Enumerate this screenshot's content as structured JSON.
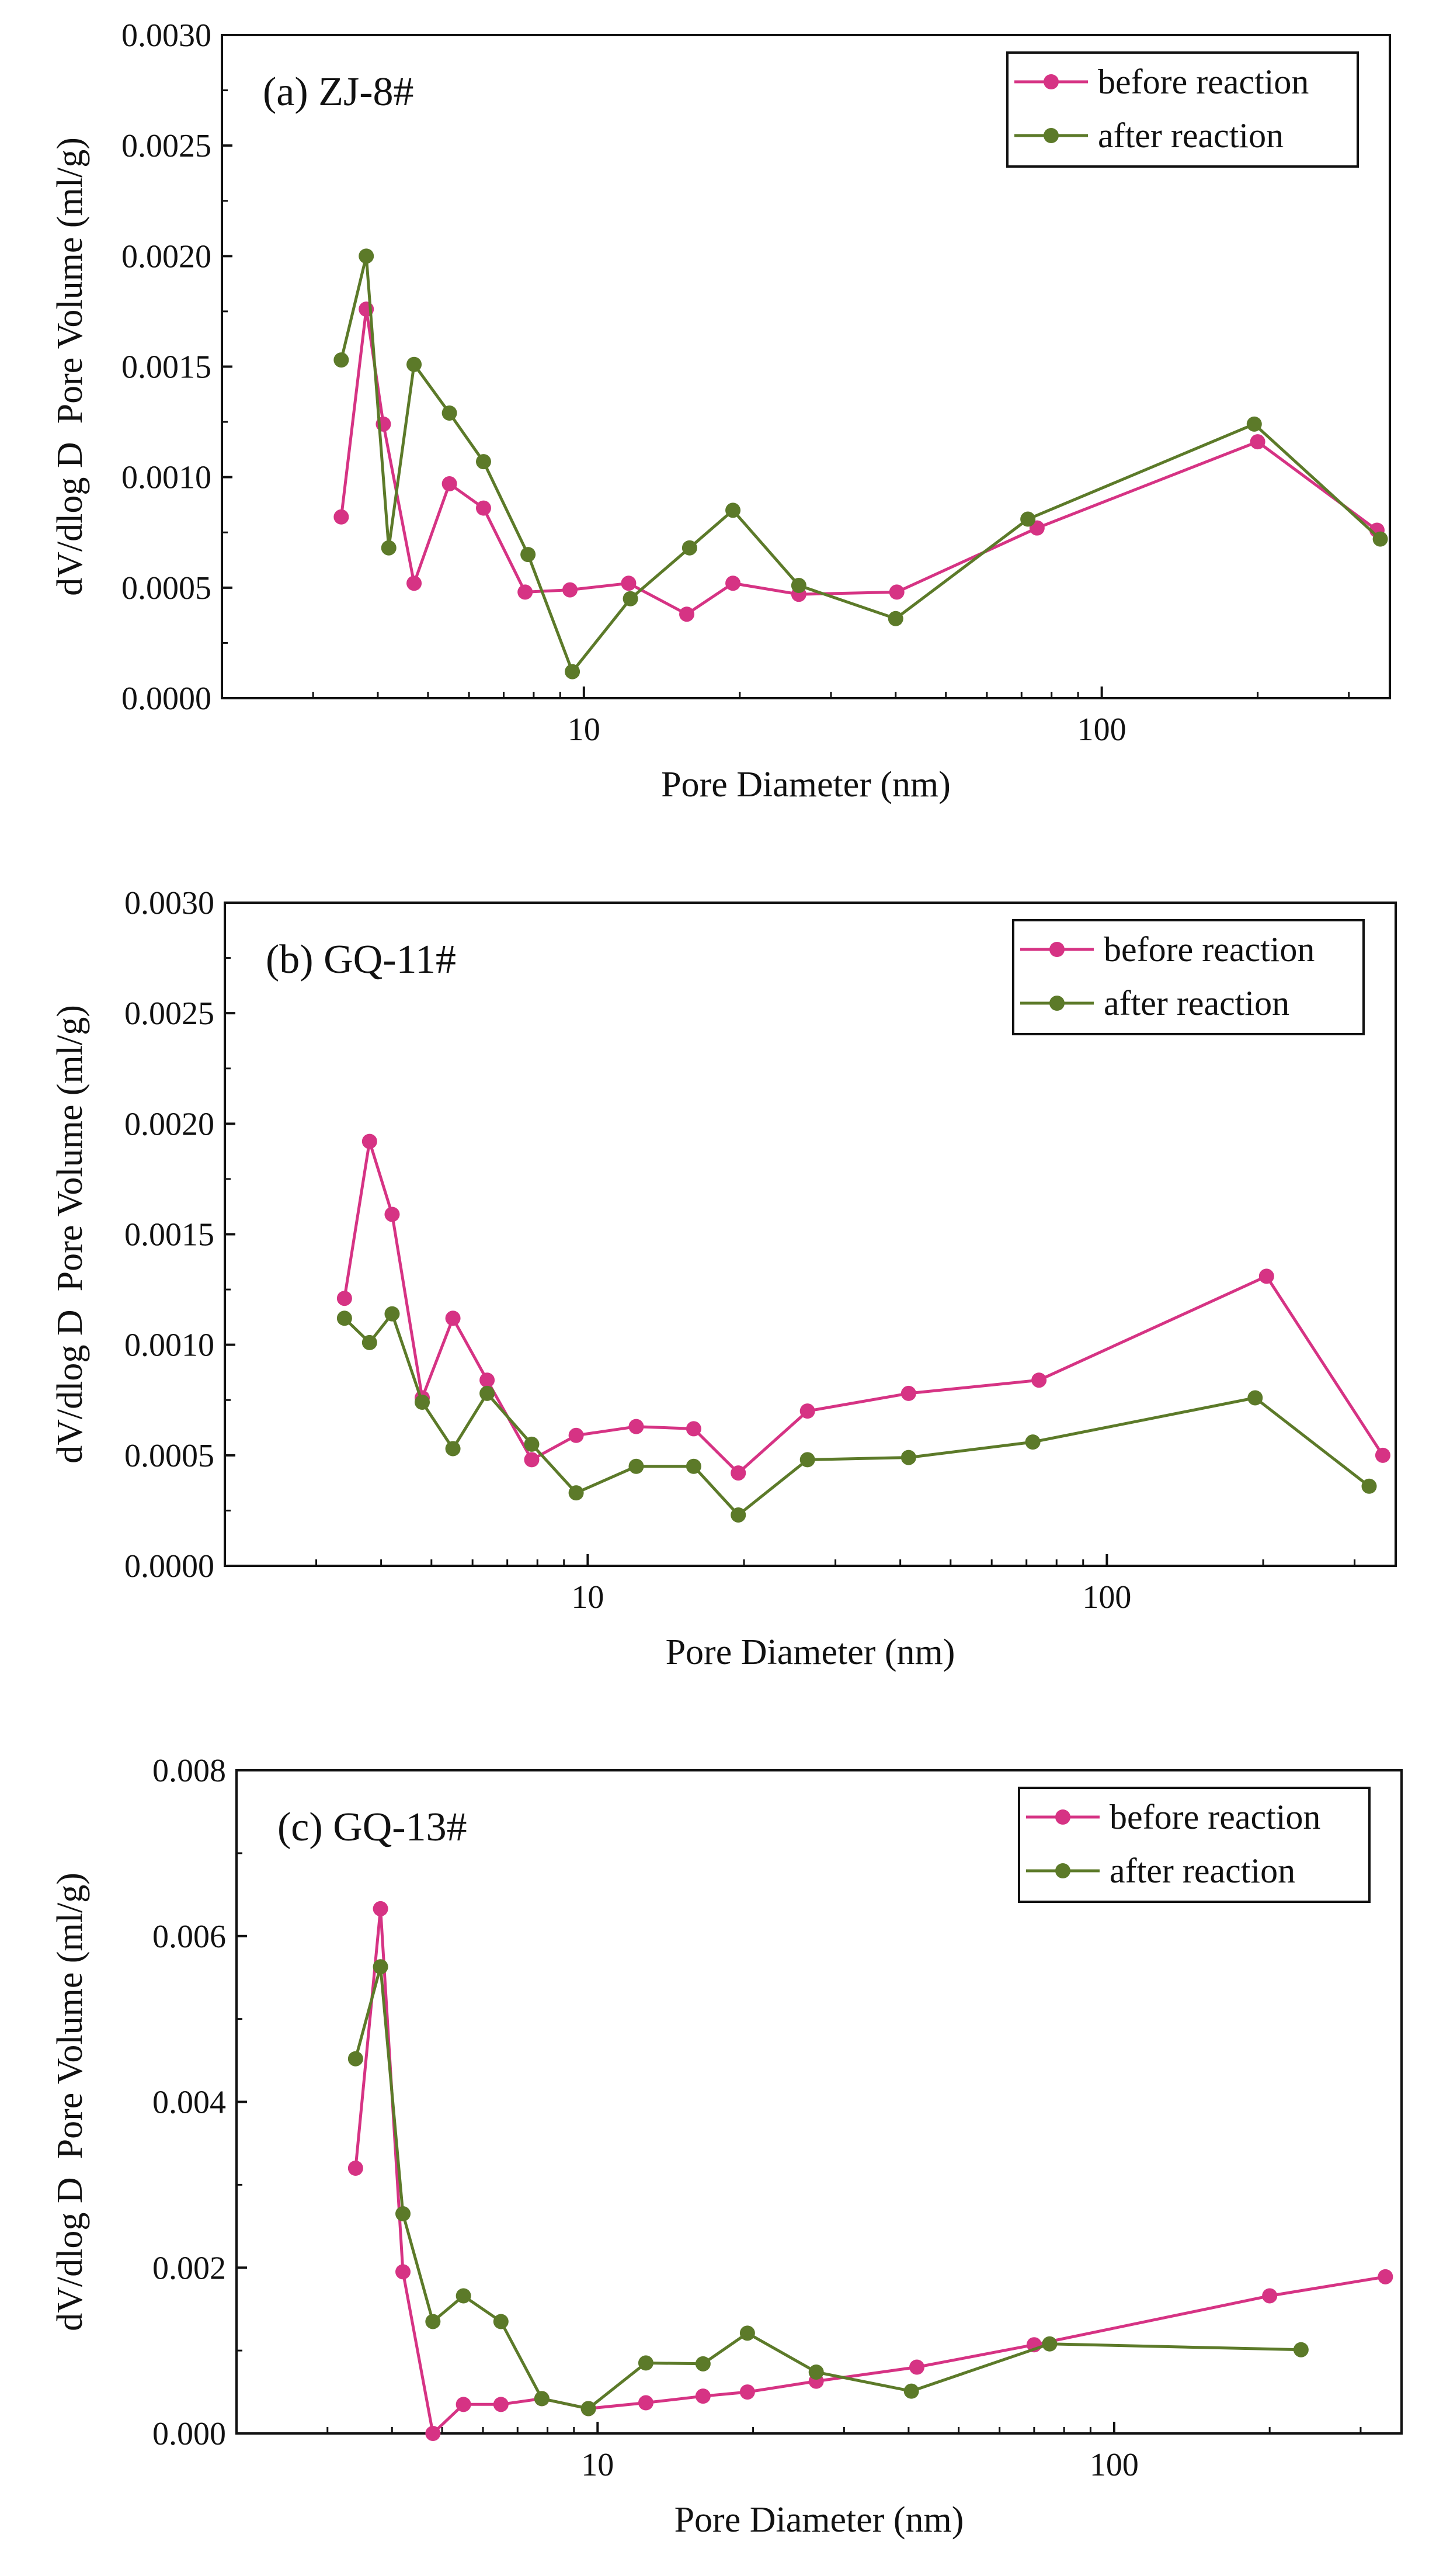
{
  "figure": {
    "colors": {
      "before": "#D63384",
      "after": "#5C7A29",
      "axis": "#111111"
    }
  },
  "chart_data": [
    {
      "type": "line",
      "panel_label": "(a) ZJ-8#",
      "xscale": "log",
      "xlabel": "Pore Diameter (nm)",
      "ylabel": "dV/dlog D  Pore Volume (ml/g)",
      "xlim": [
        2,
        360
      ],
      "ylim": [
        0,
        0.003
      ],
      "xticks": [
        {
          "value": 10,
          "label": "10"
        },
        {
          "value": 100,
          "label": "100"
        }
      ],
      "yticks": [
        {
          "value": 0,
          "label": "0.0000"
        },
        {
          "value": 0.0005,
          "label": "0.0005"
        },
        {
          "value": 0.001,
          "label": "0.0010"
        },
        {
          "value": 0.0015,
          "label": "0.0015"
        },
        {
          "value": 0.002,
          "label": "0.0020"
        },
        {
          "value": 0.0025,
          "label": "0.0025"
        },
        {
          "value": 0.003,
          "label": "0.0030"
        }
      ],
      "legend_position": "top-right",
      "series": [
        {
          "name": "before reaction",
          "key": "before",
          "x": [
            3.4,
            3.8,
            4.1,
            4.7,
            5.5,
            6.4,
            7.7,
            9.4,
            12.2,
            15.8,
            19.4,
            26,
            40.2,
            75,
            200,
            340
          ],
          "y": [
            0.00082,
            0.00176,
            0.00124,
            0.00052,
            0.00097,
            0.00086,
            0.00048,
            0.00049,
            0.00052,
            0.00038,
            0.00052,
            0.00047,
            0.00048,
            0.00077,
            0.00116,
            0.00076
          ]
        },
        {
          "name": "after reaction",
          "key": "after",
          "x": [
            3.4,
            3.8,
            4.2,
            4.7,
            5.5,
            6.4,
            7.8,
            9.5,
            12.3,
            16,
            19.4,
            26,
            40,
            72,
            197,
            345
          ],
          "y": [
            0.00153,
            0.002,
            0.00068,
            0.00151,
            0.00129,
            0.00107,
            0.00065,
            0.00012,
            0.00045,
            0.00068,
            0.00085,
            0.00051,
            0.00036,
            0.00081,
            0.00124,
            0.00072
          ]
        }
      ]
    },
    {
      "type": "line",
      "panel_label": "(b) GQ-11#",
      "xscale": "log",
      "xlabel": "Pore Diameter (nm)",
      "ylabel": "dV/dlog D  Pore Volume (ml/g)",
      "xlim": [
        2,
        360
      ],
      "ylim": [
        0,
        0.003
      ],
      "xticks": [
        {
          "value": 10,
          "label": "10"
        },
        {
          "value": 100,
          "label": "100"
        }
      ],
      "yticks": [
        {
          "value": 0,
          "label": "0.0000"
        },
        {
          "value": 0.0005,
          "label": "0.0005"
        },
        {
          "value": 0.001,
          "label": "0.0010"
        },
        {
          "value": 0.0015,
          "label": "0.0015"
        },
        {
          "value": 0.002,
          "label": "0.0020"
        },
        {
          "value": 0.0025,
          "label": "0.0025"
        },
        {
          "value": 0.003,
          "label": "0.0030"
        }
      ],
      "legend_position": "top-right",
      "series": [
        {
          "name": "before reaction",
          "key": "before",
          "x": [
            3.4,
            3.8,
            4.2,
            4.8,
            5.5,
            6.4,
            7.8,
            9.5,
            12.4,
            16,
            19.5,
            26.5,
            41.5,
            74,
            203,
            340
          ],
          "y": [
            0.00121,
            0.00192,
            0.00159,
            0.00076,
            0.00112,
            0.00084,
            0.00048,
            0.00059,
            0.00063,
            0.00062,
            0.00042,
            0.0007,
            0.00078,
            0.00084,
            0.00131,
            0.0005
          ]
        },
        {
          "name": "after reaction",
          "key": "after",
          "x": [
            3.4,
            3.8,
            4.2,
            4.8,
            5.5,
            6.4,
            7.8,
            9.5,
            12.4,
            16,
            19.5,
            26.5,
            41.5,
            72,
            193,
            320
          ],
          "y": [
            0.00112,
            0.00101,
            0.00114,
            0.00074,
            0.00053,
            0.00078,
            0.00055,
            0.00033,
            0.00045,
            0.00045,
            0.00023,
            0.00048,
            0.00049,
            0.00056,
            0.00076,
            0.00036
          ]
        }
      ]
    },
    {
      "type": "line",
      "panel_label": "(c) GQ-13#",
      "xscale": "log",
      "xlabel": "Pore Diameter (nm)",
      "ylabel": "dV/dlog D  Pore Volume (ml/g)",
      "xlim": [
        2,
        360
      ],
      "ylim": [
        0,
        0.008
      ],
      "xticks": [
        {
          "value": 10,
          "label": "10"
        },
        {
          "value": 100,
          "label": "100"
        }
      ],
      "yticks": [
        {
          "value": 0,
          "label": "0.000"
        },
        {
          "value": 0.002,
          "label": "0.002"
        },
        {
          "value": 0.004,
          "label": "0.004"
        },
        {
          "value": 0.006,
          "label": "0.006"
        },
        {
          "value": 0.008,
          "label": "0.008"
        }
      ],
      "legend_position": "top-right",
      "series": [
        {
          "name": "before reaction",
          "key": "before",
          "x": [
            3.4,
            3.8,
            4.2,
            4.8,
            5.5,
            6.5,
            7.8,
            9.6,
            12.4,
            16,
            19.5,
            26.5,
            41.5,
            70,
            200,
            335
          ],
          "y": [
            0.0032,
            0.00633,
            0.00195,
            0.0,
            0.00035,
            0.00035,
            0.00042,
            0.0003,
            0.00037,
            0.00045,
            0.0005,
            0.00063,
            0.0008,
            0.00107,
            0.00166,
            0.00189
          ]
        },
        {
          "name": "after reaction",
          "key": "after",
          "x": [
            3.4,
            3.8,
            4.2,
            4.8,
            5.5,
            6.5,
            7.8,
            9.6,
            12.4,
            16,
            19.5,
            26.5,
            40.5,
            75,
            230
          ],
          "y": [
            0.00452,
            0.00563,
            0.00265,
            0.00135,
            0.00166,
            0.00135,
            0.00042,
            0.0003,
            0.00085,
            0.00084,
            0.00121,
            0.00074,
            0.00051,
            0.00108,
            0.00101
          ]
        }
      ]
    }
  ]
}
